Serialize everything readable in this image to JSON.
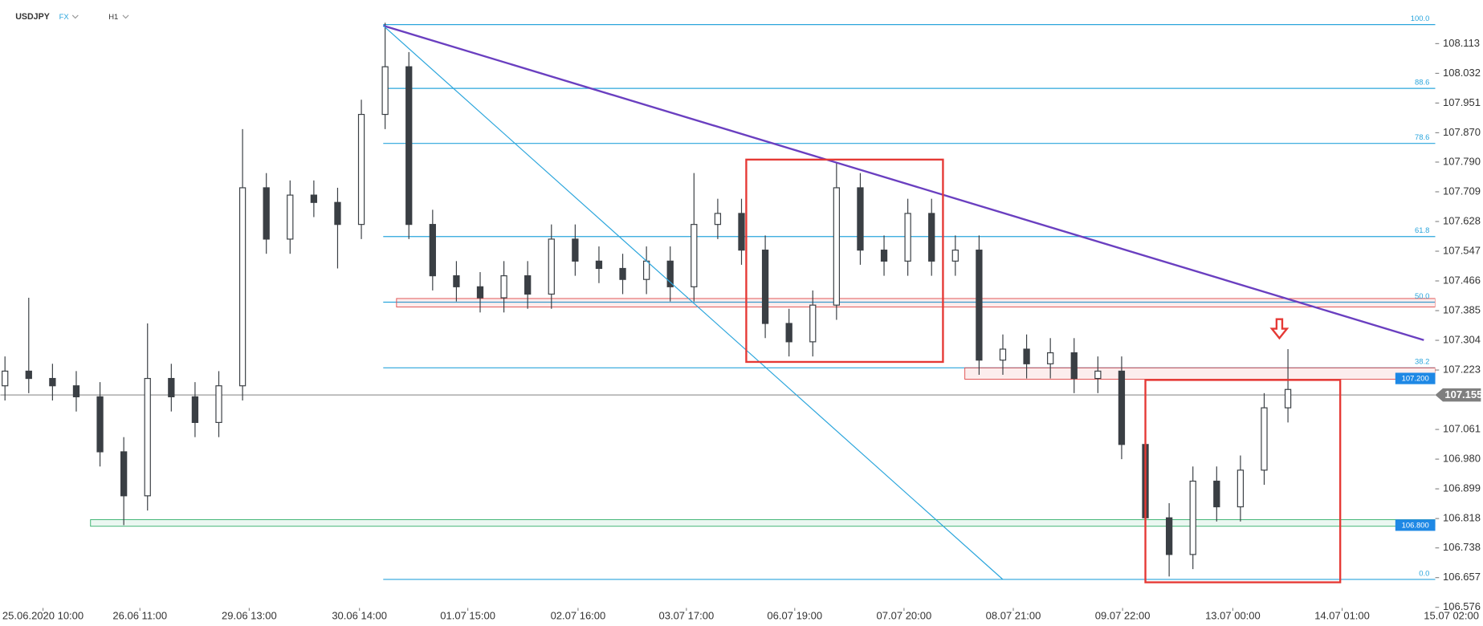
{
  "header": {
    "symbol": "USDJPY",
    "market": "FX",
    "timeframe": "H1"
  },
  "chart_data": {
    "type": "candlestick",
    "x": [
      1,
      6,
      11,
      16,
      21,
      26,
      31,
      36,
      41,
      46,
      51,
      56,
      61,
      66,
      71,
      76,
      81,
      86,
      91,
      96,
      101,
      106,
      111,
      116,
      121,
      126,
      131,
      136,
      141,
      146,
      151,
      156,
      161,
      166,
      171,
      176,
      181,
      186,
      191,
      196,
      201,
      206,
      211,
      216,
      221,
      226,
      231,
      236,
      241,
      246,
      251,
      256,
      261,
      266,
      271
    ],
    "open": [
      107.18,
      107.22,
      107.2,
      107.18,
      107.15,
      107.0,
      106.88,
      107.2,
      107.15,
      107.08,
      107.18,
      107.72,
      107.58,
      107.7,
      107.68,
      107.62,
      107.92,
      108.05,
      107.62,
      107.48,
      107.45,
      107.42,
      107.48,
      107.43,
      107.58,
      107.52,
      107.5,
      107.47,
      107.52,
      107.45,
      107.62,
      107.65,
      107.55,
      107.35,
      107.3,
      107.4,
      107.72,
      107.55,
      107.52,
      107.65,
      107.52,
      107.55,
      107.25,
      107.28,
      107.24,
      107.27,
      107.2,
      107.22,
      107.02,
      106.82,
      106.72,
      106.92,
      106.85,
      106.95,
      107.12
    ],
    "high": [
      107.26,
      107.42,
      107.24,
      107.22,
      107.19,
      107.04,
      107.35,
      107.24,
      107.19,
      107.22,
      107.88,
      107.76,
      107.74,
      107.74,
      107.72,
      107.96,
      108.17,
      108.09,
      107.66,
      107.52,
      107.49,
      107.52,
      107.52,
      107.62,
      107.62,
      107.56,
      107.54,
      107.56,
      107.56,
      107.76,
      107.69,
      107.69,
      107.59,
      107.39,
      107.44,
      107.79,
      107.76,
      107.59,
      107.69,
      107.69,
      107.59,
      107.59,
      107.32,
      107.32,
      107.31,
      107.31,
      107.26,
      107.26,
      107.06,
      106.86,
      106.96,
      106.96,
      106.99,
      107.16,
      107.28
    ],
    "low": [
      107.14,
      107.16,
      107.14,
      107.11,
      106.96,
      106.8,
      106.84,
      107.11,
      107.04,
      107.04,
      107.14,
      107.54,
      107.54,
      107.64,
      107.5,
      107.58,
      107.88,
      107.58,
      107.44,
      107.41,
      107.38,
      107.38,
      107.39,
      107.39,
      107.48,
      107.46,
      107.43,
      107.43,
      107.41,
      107.41,
      107.58,
      107.51,
      107.31,
      107.26,
      107.26,
      107.36,
      107.51,
      107.48,
      107.48,
      107.48,
      107.48,
      107.21,
      107.21,
      107.2,
      107.2,
      107.16,
      107.16,
      106.98,
      106.78,
      106.66,
      106.68,
      106.81,
      106.81,
      106.91,
      107.08
    ],
    "close": [
      107.22,
      107.2,
      107.18,
      107.15,
      107.0,
      106.88,
      107.2,
      107.15,
      107.08,
      107.18,
      107.72,
      107.58,
      107.7,
      107.68,
      107.62,
      107.92,
      108.05,
      107.62,
      107.48,
      107.45,
      107.42,
      107.48,
      107.43,
      107.58,
      107.52,
      107.5,
      107.47,
      107.52,
      107.45,
      107.62,
      107.65,
      107.55,
      107.35,
      107.3,
      107.4,
      107.72,
      107.55,
      107.52,
      107.65,
      107.52,
      107.55,
      107.25,
      107.28,
      107.24,
      107.27,
      107.2,
      107.22,
      107.02,
      106.82,
      106.72,
      106.92,
      106.85,
      106.95,
      107.12,
      107.17
    ],
    "colors": {
      "up": "#ffffff",
      "down": "#3a3f44",
      "wick": "#3a3f44"
    },
    "xlim": [
      0,
      312
    ],
    "xticks": [
      {
        "value": 9,
        "label": "25.06.2020  10:00"
      },
      {
        "value": 29.4,
        "label": "26.06  11:00"
      },
      {
        "value": 52.4,
        "label": "29.06  13:00"
      },
      {
        "value": 75.6,
        "label": "30.06  14:00"
      },
      {
        "value": 98.4,
        "label": "01.07  15:00"
      },
      {
        "value": 121.6,
        "label": "02.07  16:00"
      },
      {
        "value": 144.4,
        "label": "03.07  17:00"
      },
      {
        "value": 167.2,
        "label": "06.07  19:00"
      },
      {
        "value": 190.2,
        "label": "07.07  20:00"
      },
      {
        "value": 213.2,
        "label": "08.07  21:00"
      },
      {
        "value": 236.2,
        "label": "09.07  22:00"
      },
      {
        "value": 259.4,
        "label": "13.07  00:00"
      },
      {
        "value": 282.4,
        "label": "14.07  01:00"
      },
      {
        "value": 305.4,
        "label": "15.07  02:00"
      }
    ],
    "ylim": [
      106.525,
      108.232
    ],
    "yticks": [
      108.113,
      108.032,
      107.951,
      {
        "value": 107.87,
        "label": "107.870"
      },
      {
        "value": 107.79,
        "label": "107.790"
      },
      107.709,
      107.628,
      107.547,
      107.466,
      107.385,
      107.304,
      107.223,
      107.061,
      {
        "value": 106.98,
        "label": "106.980"
      },
      106.899,
      106.818,
      106.738,
      106.657,
      106.576
    ],
    "grid": false,
    "fib_color": "#2aa5dc",
    "fib_start": 80.6,
    "fib_levels": [
      {
        "ratio": {
          "value": 100,
          "label": "100.0"
        },
        "price": 108.165
      },
      {
        "ratio": 88.6,
        "price": 107.991
      },
      {
        "ratio": 78.6,
        "price": 107.841
      },
      {
        "ratio": 61.8,
        "price": 107.587
      },
      {
        "ratio": {
          "value": 50,
          "label": "50.0"
        },
        "price": 107.408
      },
      {
        "ratio": 38.2,
        "price": 107.229
      },
      {
        "ratio": {
          "value": 0,
          "label": "0.0"
        },
        "price": 106.652
      }
    ],
    "zones": [
      {
        "from": 83.4,
        "top": 107.418,
        "bottom": 107.395,
        "color": "#e05050"
      },
      {
        "from": 203,
        "top": 107.229,
        "bottom": 107.198,
        "color": "#e05050"
      },
      {
        "from": 19,
        "top": 106.815,
        "bottom": 106.797,
        "color": "#3cb371"
      }
    ],
    "levels": [
      {
        "value": 107.2,
        "label": "107.200",
        "color": "#1e88e5"
      },
      {
        "value": 106.8,
        "label": "106.800",
        "color": "#1e88e5"
      }
    ],
    "current_price": {
      "value": 107.155,
      "label": "107.155",
      "color": "#7f7f7f"
    }
  }
}
